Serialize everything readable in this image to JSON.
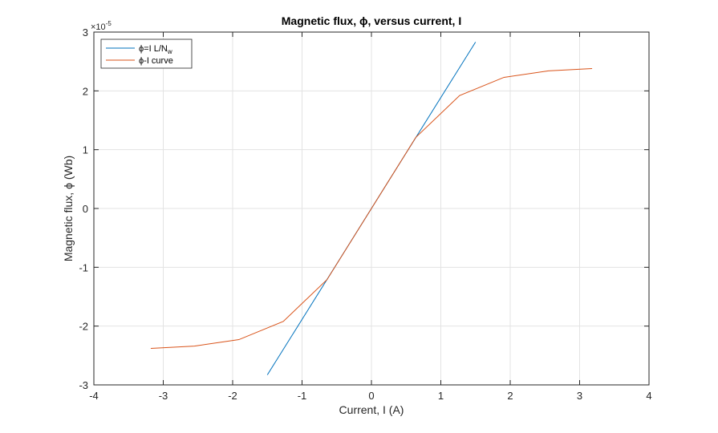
{
  "chart_data": {
    "type": "line",
    "title": "Magnetic  flux,  ϕ,  versus  current,  I",
    "xlabel": "Current, I (A)",
    "ylabel": "Magnetic  flux,  ϕ  (Wb)",
    "y_exponent_base": "×10",
    "y_exponent_power": "-5",
    "xlim": [
      -4,
      4
    ],
    "ylim": [
      -3,
      3
    ],
    "xticks": [
      -4,
      -3,
      -2,
      -1,
      0,
      1,
      2,
      3,
      4
    ],
    "yticks": [
      -3,
      -2,
      -1,
      0,
      1,
      2,
      3
    ],
    "xtick_labels": [
      "-4",
      "-3",
      "-2",
      "-1",
      "0",
      "1",
      "2",
      "3",
      "4"
    ],
    "ytick_labels": [
      "-3",
      "-2",
      "-1",
      "0",
      "1",
      "2",
      "3"
    ],
    "grid": true,
    "legend_position": "top-left",
    "series": [
      {
        "name": "ϕ=I  L/N",
        "name_subscript": "w",
        "color": "#0072BD",
        "x": [
          -1.5,
          1.5
        ],
        "y": [
          -2.83,
          2.83
        ]
      },
      {
        "name": "ϕ-I  curve",
        "color": "#D95319",
        "x": [
          -3.18,
          -2.55,
          -1.91,
          -1.27,
          -0.64,
          0,
          0.64,
          1.27,
          1.91,
          2.55,
          3.18
        ],
        "y": [
          -2.38,
          -2.34,
          -2.23,
          -1.92,
          -1.21,
          0,
          1.21,
          1.92,
          2.23,
          2.34,
          2.38
        ]
      }
    ]
  }
}
